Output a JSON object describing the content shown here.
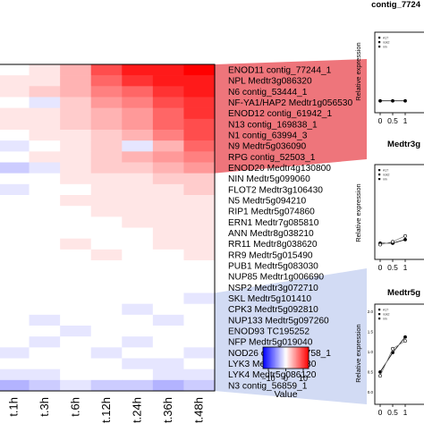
{
  "chart_data": [
    {
      "type": "heatmap",
      "columns": [
        "t.1h",
        "t.3h",
        "t.6h",
        "t.12h",
        "t.24h",
        "t.36h",
        "t.48h"
      ],
      "rows": [
        "ENOD11 contig_77244_1",
        "NPL Medtr3g086320",
        "N6 contig_53444_1",
        "NF-YA1/HAP2 Medtr1g056530",
        "ENOD12 contig_61942_1",
        "N13 contig_169838_1",
        "N1 contig_63994_3",
        "N9 Medtr5g036090",
        "RPG contig_52503_1",
        "ENOD20 Medtr4g130800",
        "NIN Medtr5g099060",
        "FLOT2 Medtr3g106430",
        "N5 Medtr5g094210",
        "RIP1 Medtr5g074860",
        "ERN1 Medtr7g085810",
        "ANN Medtr8g038210",
        "RR11 Medtr8g038620",
        "RR9 Medtr5g015490",
        "PUB1 Medtr5g083030",
        "NUP85 Medtr1g006690",
        "NSP2 Medtr3g072710",
        "SKL Medtr5g101410",
        "CPK3 Medtr5g092810",
        "NUP133 Medtr5g097260",
        "ENOD93 TC195252",
        "NFP Medtr5g019040",
        "NOD26 contig_129758_1",
        "LYK3 Medtr5g086130",
        "LYK4 Medtr5g086120",
        "N3 contig_56859_1"
      ],
      "values": [
        [
          0,
          1,
          3,
          7,
          9,
          9,
          10
        ],
        [
          1,
          1,
          3,
          6,
          8,
          9,
          9
        ],
        [
          1,
          2,
          3,
          5,
          6,
          8,
          9
        ],
        [
          0,
          -1,
          2,
          4,
          5,
          7,
          8
        ],
        [
          1,
          1,
          2,
          3,
          4,
          6,
          8
        ],
        [
          1,
          1,
          2,
          3,
          4,
          6,
          7
        ],
        [
          0,
          1,
          1,
          2,
          3,
          5,
          7
        ],
        [
          -1,
          0,
          1,
          2,
          -1,
          3,
          6
        ],
        [
          0,
          1,
          1,
          2,
          3,
          4,
          5
        ],
        [
          -2,
          -1,
          1,
          2,
          2,
          3,
          4
        ],
        [
          0,
          0,
          1,
          1,
          1,
          2,
          2
        ],
        [
          -1,
          0,
          0,
          1,
          1,
          1,
          2
        ],
        [
          0,
          0,
          1,
          1,
          1,
          1,
          1
        ],
        [
          0,
          0,
          0,
          1,
          1,
          1,
          1
        ],
        [
          0,
          0,
          0,
          0,
          1,
          1,
          1
        ],
        [
          0,
          0,
          0,
          0,
          0,
          1,
          1
        ],
        [
          0,
          0,
          1,
          0,
          0,
          1,
          1
        ],
        [
          0,
          0,
          0,
          1,
          0,
          0,
          1
        ],
        [
          0,
          0,
          0,
          0,
          0,
          0,
          0
        ],
        [
          0,
          0,
          0,
          0,
          0,
          0,
          0
        ],
        [
          0,
          0,
          0,
          0,
          0,
          0,
          0
        ],
        [
          0,
          0,
          0,
          0,
          0,
          0,
          -1
        ],
        [
          0,
          0,
          0,
          0,
          -1,
          0,
          0
        ],
        [
          0,
          -1,
          0,
          0,
          0,
          -1,
          0
        ],
        [
          0,
          0,
          -1,
          0,
          0,
          0,
          0
        ],
        [
          0,
          -1,
          0,
          0,
          -1,
          0,
          0
        ],
        [
          -1,
          0,
          0,
          -1,
          0,
          0,
          -1
        ],
        [
          0,
          0,
          0,
          0,
          -1,
          -1,
          0
        ],
        [
          -1,
          -1,
          0,
          0,
          0,
          -1,
          -1
        ],
        [
          -3,
          -2,
          -1,
          -2,
          -2,
          -3,
          -2
        ]
      ],
      "color_scale": {
        "low_color": "#0000ff",
        "mid_color": "#ffffff",
        "high_color": "#ff0000",
        "range": [
          -10,
          10
        ],
        "ticks": [
          "−10",
          "0",
          "10"
        ],
        "label": "Value"
      },
      "row_bands": [
        {
          "color": "#e8474f",
          "intensity": 0.75
        },
        {
          "color": "#ffffff",
          "intensity": 0.0
        },
        {
          "color": "#a6b7ea",
          "intensity": 0.5
        }
      ]
    },
    {
      "type": "line",
      "title": "contig_7724",
      "ylabel": "Relative expression",
      "x_ticks": [
        "0",
        "0.5",
        "1"
      ],
      "legend": [
        "A17",
        "nsk2",
        "nin"
      ]
    },
    {
      "type": "line",
      "title": "Medtr3g",
      "ylabel": "Relative expression",
      "x_ticks": [
        "0",
        "0.5",
        "1"
      ],
      "legend": [
        "A17",
        "nsk2",
        "nin"
      ]
    },
    {
      "type": "line",
      "title": "Medtr5g",
      "ylabel": "Relative expression",
      "x_ticks": [
        "0",
        "0.5",
        "1"
      ],
      "y_ticks": [
        "2.0",
        "1.5",
        "1.0",
        "0.5",
        "0.0"
      ],
      "legend": [
        "A17",
        "nsk2",
        "nin"
      ]
    }
  ]
}
